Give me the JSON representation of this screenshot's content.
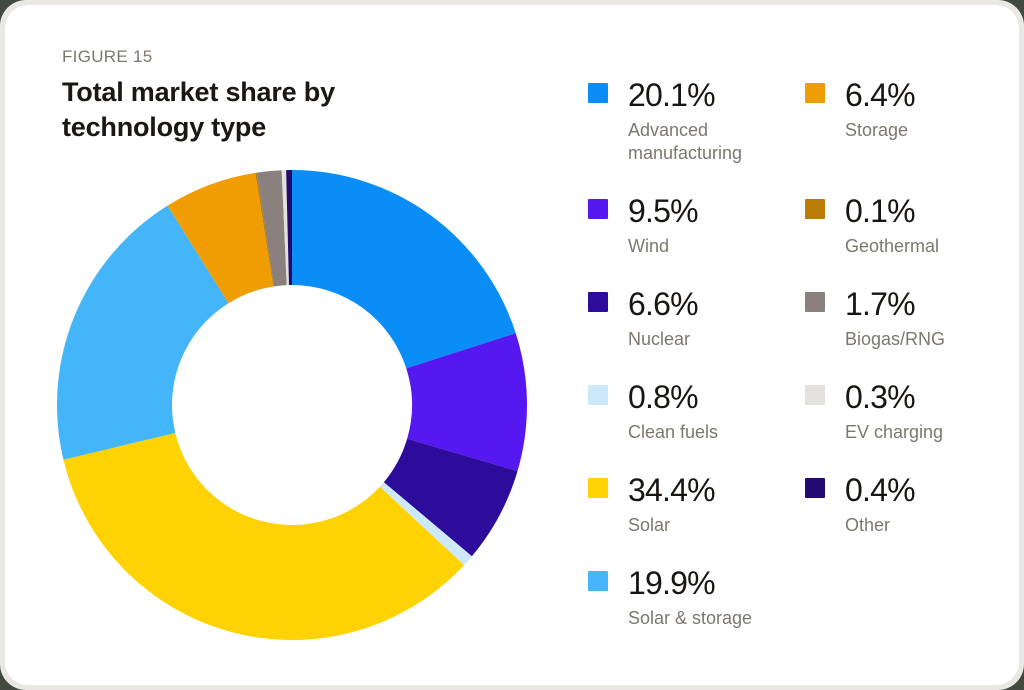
{
  "figure_label": "FIGURE 15",
  "title": "Total market share by technology type",
  "chart_data": {
    "type": "pie",
    "donut": true,
    "title": "Total market share by technology type",
    "start_angle_deg": 0,
    "direction": "clockwise",
    "legend_position": "right",
    "legend_columns": 2,
    "inner_radius_ratio": 0.51,
    "segments": [
      {
        "label": "Advanced manufacturing",
        "value": 20.1,
        "display": "20.1%",
        "color": "#0B8DF7"
      },
      {
        "label": "Wind",
        "value": 9.5,
        "display": "9.5%",
        "color": "#5518F0"
      },
      {
        "label": "Nuclear",
        "value": 6.6,
        "display": "6.6%",
        "color": "#2D0C9C"
      },
      {
        "label": "Clean fuels",
        "value": 0.8,
        "display": "0.8%",
        "color": "#CDE9F9"
      },
      {
        "label": "Solar",
        "value": 34.4,
        "display": "34.4%",
        "color": "#FFD303"
      },
      {
        "label": "Solar & storage",
        "value": 19.9,
        "display": "19.9%",
        "color": "#44B5F9"
      },
      {
        "label": "Storage",
        "value": 6.4,
        "display": "6.4%",
        "color": "#F09D03"
      },
      {
        "label": "Geothermal",
        "value": 0.1,
        "display": "0.1%",
        "color": "#B97D05"
      },
      {
        "label": "Biogas/RNG",
        "value": 1.7,
        "display": "1.7%",
        "color": "#8A817E"
      },
      {
        "label": "EV charging",
        "value": 0.3,
        "display": "0.3%",
        "color": "#E2E1DE"
      },
      {
        "label": "Other",
        "value": 0.4,
        "display": "0.4%",
        "color": "#230A71"
      }
    ]
  }
}
